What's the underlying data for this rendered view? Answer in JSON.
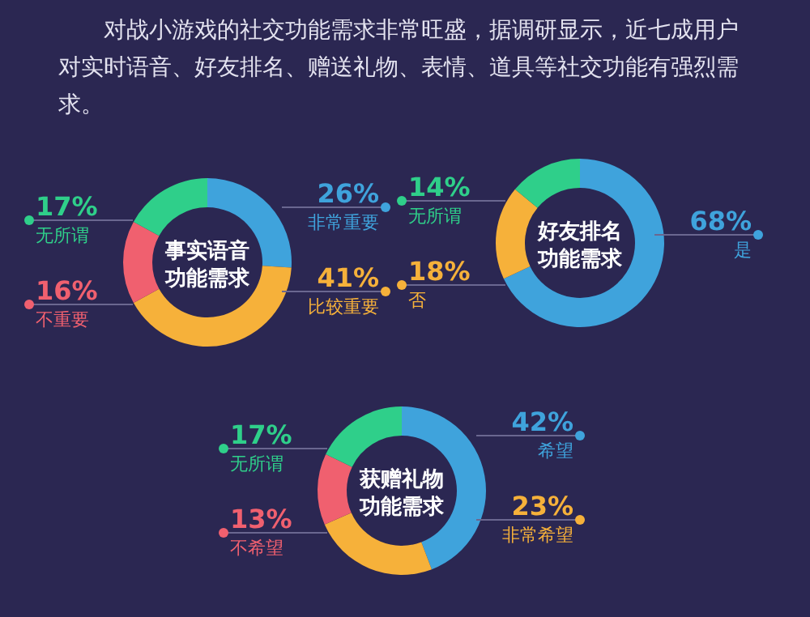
{
  "chart_data": [
    {
      "type": "other",
      "title": "对战小游戏的社交功能需求非常旺盛，据调研显示，近七成用户对实时语音、好友排名、赠送礼物、表情、道具等社交功能有强烈需求。"
    },
    {
      "type": "donut",
      "title": "事实语音功能需求",
      "categories": [
        "非常重要",
        "比较重要",
        "不重要",
        "无所谓"
      ],
      "values": [
        26,
        41,
        16,
        17
      ],
      "colors": [
        "#3fa3dc",
        "#f6b13a",
        "#f0606f",
        "#2fcf8a"
      ],
      "value_labels": [
        "26%",
        "41%",
        "16%",
        "17%"
      ],
      "legend": "right"
    },
    {
      "type": "donut",
      "title": "好友排名功能需求",
      "categories": [
        "是",
        "否",
        "无所谓"
      ],
      "values": [
        68,
        18,
        14
      ],
      "colors": [
        "#3fa3dc",
        "#f6b13a",
        "#2fcf8a"
      ],
      "value_labels": [
        "68%",
        "18%",
        "14%"
      ],
      "legend": "right"
    },
    {
      "type": "donut",
      "title": "获赠礼物功能需求",
      "categories": [
        "希望",
        "非常希望",
        "不希望",
        "无所谓"
      ],
      "values": [
        42,
        23,
        13,
        17
      ],
      "colors": [
        "#3fa3dc",
        "#f6b13a",
        "#f0606f",
        "#2fcf8a"
      ],
      "value_labels": [
        "42%",
        "23%",
        "13%",
        "17%"
      ],
      "legend": "right"
    }
  ]
}
